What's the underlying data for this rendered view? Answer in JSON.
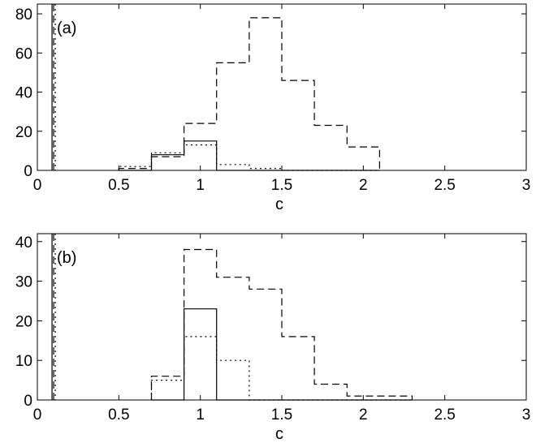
{
  "chart_data": [
    {
      "type": "step",
      "panel_label": "(a)",
      "xlabel": "c",
      "ylabel": "",
      "xlim": [
        0,
        3
      ],
      "ylim": [
        0,
        85
      ],
      "xticks": [
        0,
        0.5,
        1,
        1.5,
        2,
        2.5,
        3
      ],
      "xtick_labels": [
        "0",
        "0.5",
        "1",
        "1.5",
        "2",
        "2.5",
        "3"
      ],
      "yticks": [
        0,
        20,
        40,
        60,
        80
      ],
      "ytick_labels": [
        "0",
        "20",
        "40",
        "60",
        "80"
      ],
      "grid": false,
      "bin_edges": [
        0.5,
        0.7,
        0.9,
        1.1,
        1.3,
        1.5,
        1.7,
        1.9,
        2.1
      ],
      "series": [
        {
          "style": "solid",
          "counts": [
            0,
            8,
            15,
            0,
            0,
            0,
            0,
            0
          ]
        },
        {
          "style": "dashed",
          "counts": [
            1,
            7,
            24,
            55,
            78,
            46,
            23,
            12
          ]
        },
        {
          "style": "dotted",
          "counts": [
            2,
            9,
            13,
            3,
            1,
            0,
            0,
            0
          ]
        }
      ],
      "vertical_lines": [
        {
          "style": "solid",
          "x": 0.09
        },
        {
          "style": "dashed",
          "x": 0.1
        },
        {
          "style": "dotted",
          "x": 0.11
        }
      ]
    },
    {
      "type": "step",
      "panel_label": "(b)",
      "xlabel": "c",
      "ylabel": "",
      "xlim": [
        0,
        3
      ],
      "ylim": [
        0,
        42
      ],
      "xticks": [
        0,
        0.5,
        1,
        1.5,
        2,
        2.5,
        3
      ],
      "xtick_labels": [
        "0",
        "0.5",
        "1",
        "1.5",
        "2",
        "2.5",
        "3"
      ],
      "yticks": [
        0,
        10,
        20,
        30,
        40
      ],
      "ytick_labels": [
        "0",
        "10",
        "20",
        "30",
        "40"
      ],
      "grid": false,
      "bin_edges": [
        0.7,
        0.9,
        1.1,
        1.3,
        1.5,
        1.7,
        1.9,
        2.1,
        2.3
      ],
      "series": [
        {
          "style": "solid",
          "counts": [
            0,
            23,
            0,
            0,
            0,
            0,
            0,
            0
          ]
        },
        {
          "style": "dashed",
          "counts": [
            6,
            38,
            31,
            28,
            16,
            4,
            1,
            1
          ]
        },
        {
          "style": "dotted",
          "counts": [
            5,
            16,
            10,
            0,
            0,
            0,
            0,
            0
          ]
        }
      ],
      "vertical_lines": [
        {
          "style": "solid",
          "x": 0.09
        },
        {
          "style": "dashed",
          "x": 0.1
        },
        {
          "style": "dotted",
          "x": 0.11
        }
      ]
    }
  ]
}
